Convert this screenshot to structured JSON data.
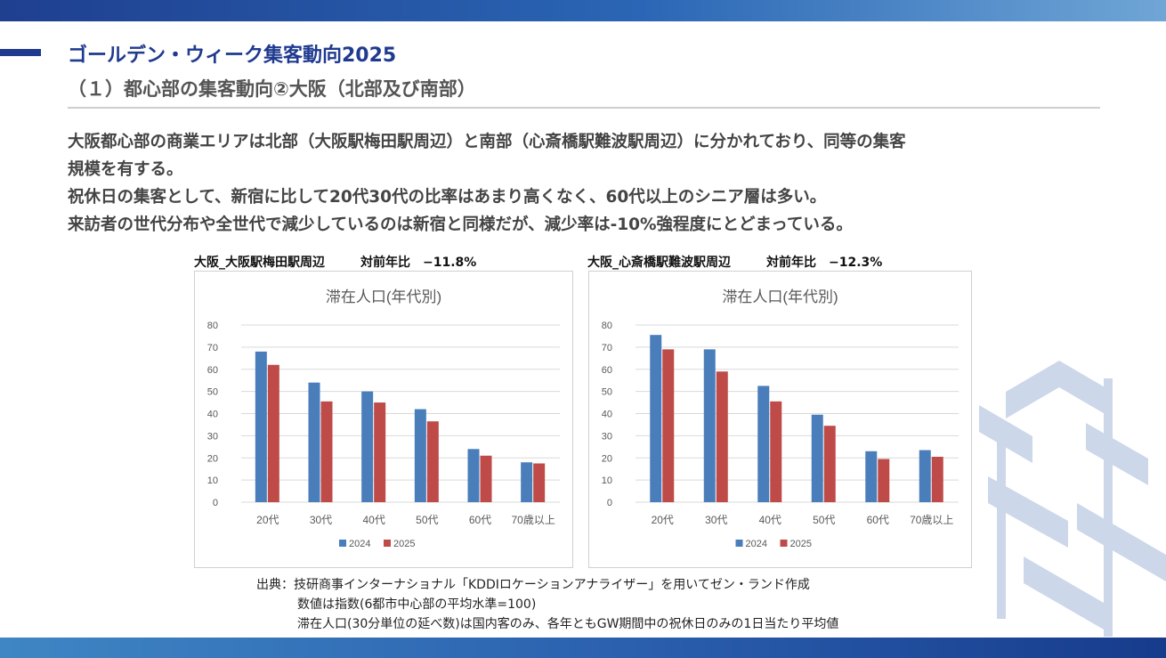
{
  "header": {
    "title": "ゴールデン・ウィーク集客動向2025",
    "subtitle": "（１）都心部の集客動向②大阪（北部及び南部）"
  },
  "body": {
    "lines": [
      "大阪都心部の商業エリアは北部（大阪駅梅田駅周辺）と南部（心斎橋駅難波駅周辺）に分かれており、同等の集客",
      "規模を有する。",
      "祝休日の集客として、新宿に比して20代30代の比率はあまり高くなく、60代以上のシニア層は多い。",
      "来訪者の世代分布や全世代で減少しているのは新宿と同様だが、減少率は-10%強程度にとどまっている。"
    ]
  },
  "charts": [
    {
      "caption": "大阪_大阪駅梅田駅周辺",
      "ratio": "対前年比　−11.8%"
    },
    {
      "caption": "大阪_心斎橋駅難波駅周辺",
      "ratio": "対前年比　−12.3%"
    }
  ],
  "chart_data": [
    {
      "type": "bar",
      "title": "滞在人口(年代別)",
      "categories": [
        "20代",
        "30代",
        "40代",
        "50代",
        "60代",
        "70歳以上"
      ],
      "series": [
        {
          "name": "2024",
          "color": "#4a7ebb",
          "values": [
            68,
            54,
            50,
            42,
            24,
            18
          ]
        },
        {
          "name": "2025",
          "color": "#be4b48",
          "values": [
            62,
            45.5,
            45,
            36.5,
            21,
            17.5
          ]
        }
      ],
      "ylim": [
        0,
        80
      ],
      "yticks": [
        0,
        10,
        20,
        30,
        40,
        50,
        60,
        70,
        80
      ],
      "xlabel": "",
      "ylabel": "",
      "legend": "bottom"
    },
    {
      "type": "bar",
      "title": "滞在人口(年代別)",
      "categories": [
        "20代",
        "30代",
        "40代",
        "50代",
        "60代",
        "70歳以上"
      ],
      "series": [
        {
          "name": "2024",
          "color": "#4a7ebb",
          "values": [
            75.5,
            69,
            52.5,
            39.5,
            23,
            23.5
          ]
        },
        {
          "name": "2025",
          "color": "#be4b48",
          "values": [
            69,
            59,
            45.5,
            34.5,
            19.5,
            20.5
          ]
        }
      ],
      "ylim": [
        0,
        80
      ],
      "yticks": [
        0,
        10,
        20,
        30,
        40,
        50,
        60,
        70,
        80
      ],
      "xlabel": "",
      "ylabel": "",
      "legend": "bottom"
    }
  ],
  "source": {
    "line1": "出典：技研商事インターナショナル「KDDIロケーションアナライザー」を用いてゼン・ランド作成",
    "line2": "数値は指数(6都市中心部の平均水準=100)",
    "line3": "滞在人口(30分単位の延べ数)は国内客のみ、各年ともGW期間中の祝休日のみの1日当たり平均値"
  }
}
